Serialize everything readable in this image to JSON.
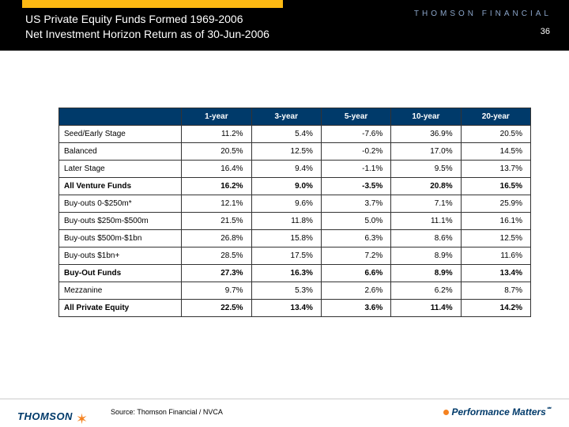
{
  "header": {
    "title_line1": "US Private Equity Funds Formed 1969-2006",
    "title_line2": "Net Investment Horizon Return as of 30-Jun-2006",
    "brand": "THOMSON FINANCIAL",
    "page_number": "36"
  },
  "table": {
    "columns": [
      "",
      "1-year",
      "3-year",
      "5-year",
      "10-year",
      "20-year"
    ],
    "rows": [
      {
        "label": "Seed/Early Stage",
        "vals": [
          "11.2%",
          "5.4%",
          "-7.6%",
          "36.9%",
          "20.5%"
        ],
        "bold": false
      },
      {
        "label": "Balanced",
        "vals": [
          "20.5%",
          "12.5%",
          "-0.2%",
          "17.0%",
          "14.5%"
        ],
        "bold": false
      },
      {
        "label": "Later Stage",
        "vals": [
          "16.4%",
          "9.4%",
          "-1.1%",
          "9.5%",
          "13.7%"
        ],
        "bold": false
      },
      {
        "label": "All Venture Funds",
        "vals": [
          "16.2%",
          "9.0%",
          "-3.5%",
          "20.8%",
          "16.5%"
        ],
        "bold": true
      },
      {
        "label": "Buy-outs 0-$250m*",
        "vals": [
          "12.1%",
          "9.6%",
          "3.7%",
          "7.1%",
          "25.9%"
        ],
        "bold": false
      },
      {
        "label": "Buy-outs $250m-$500m",
        "vals": [
          "21.5%",
          "11.8%",
          "5.0%",
          "11.1%",
          "16.1%"
        ],
        "bold": false
      },
      {
        "label": "Buy-outs $500m-$1bn",
        "vals": [
          "26.8%",
          "15.8%",
          "6.3%",
          "8.6%",
          "12.5%"
        ],
        "bold": false
      },
      {
        "label": "Buy-outs $1bn+",
        "vals": [
          "28.5%",
          "17.5%",
          "7.2%",
          "8.9%",
          "11.6%"
        ],
        "bold": false
      },
      {
        "label": "Buy-Out Funds",
        "vals": [
          "27.3%",
          "16.3%",
          "6.6%",
          "8.9%",
          "13.4%"
        ],
        "bold": true
      },
      {
        "label": "Mezzanine",
        "vals": [
          "9.7%",
          "5.3%",
          "2.6%",
          "6.2%",
          "8.7%"
        ],
        "bold": false
      },
      {
        "label": "All Private Equity",
        "vals": [
          "22.5%",
          "13.4%",
          "3.6%",
          "11.4%",
          "14.2%"
        ],
        "bold": true
      }
    ]
  },
  "footer": {
    "source": "Source: Thomson Financial / NVCA",
    "logo_text": "THOMSON",
    "tagline": "Performance Matters"
  },
  "colors": {
    "header_bg": "#000000",
    "accent_yellow": "#fdb913",
    "th_bg": "#003a6a",
    "brand_blue": "#8aa4c8",
    "orange": "#f58220"
  }
}
